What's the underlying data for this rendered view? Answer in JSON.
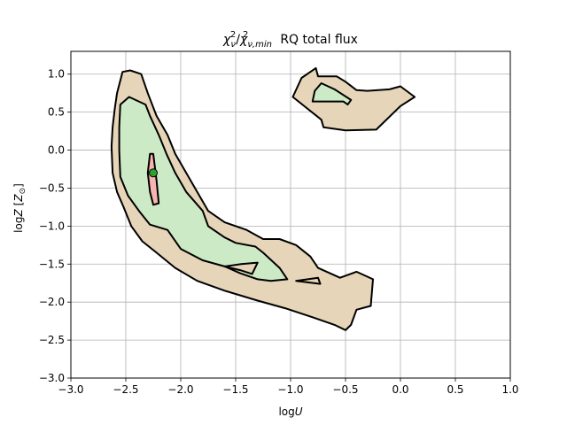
{
  "chart_data": {
    "type": "contour",
    "title": "χ²ν/χ²ν,min  RQ total flux",
    "title_parts": {
      "chi": "χ",
      "sup": "2",
      "nu": "ν",
      "sub_min": "ν,min",
      "suffix": "RQ total flux"
    },
    "xlabel": "logU",
    "xlabel_parts": {
      "prefix": "log",
      "var": "U"
    },
    "ylabel": "logZ [Z⊙]",
    "ylabel_parts": {
      "prefix": "log",
      "var": "Z",
      "unit_open": "[",
      "unit_var": "Z",
      "unit_sub": "⊙",
      "unit_close": "]"
    },
    "xlim": [
      -3.0,
      1.0
    ],
    "ylim": [
      -3.0,
      1.3
    ],
    "xticks": [
      -3.0,
      -2.5,
      -2.0,
      -1.5,
      -1.0,
      -0.5,
      0.0,
      0.5,
      1.0
    ],
    "xtick_labels": [
      "−3.0",
      "−2.5",
      "−2.0",
      "−1.5",
      "−1.0",
      "−0.5",
      "0.0",
      "0.5",
      "1.0"
    ],
    "yticks": [
      -3.0,
      -2.5,
      -2.0,
      -1.5,
      -1.0,
      -0.5,
      0.0,
      0.5,
      1.0
    ],
    "ytick_labels": [
      "−3.0",
      "−2.5",
      "−2.0",
      "−1.5",
      "−1.0",
      "−0.5",
      "0.0",
      "0.5",
      "1.0"
    ],
    "grid": true,
    "colors": {
      "outer": "#e6d5b8",
      "middle": "#cdeac6",
      "inner": "#f8b4b0",
      "edge": "#000000",
      "marker": "#2ca02c",
      "grid": "#b0b0b0"
    },
    "regions": [
      {
        "level": "outer",
        "points": [
          [
            -2.46,
            1.05
          ],
          [
            -2.53,
            1.03
          ],
          [
            -2.58,
            0.75
          ],
          [
            -2.6,
            0.55
          ],
          [
            -2.62,
            0.3
          ],
          [
            -2.63,
            0.05
          ],
          [
            -2.62,
            -0.3
          ],
          [
            -2.58,
            -0.55
          ],
          [
            -2.52,
            -0.75
          ],
          [
            -2.45,
            -1.0
          ],
          [
            -2.35,
            -1.2
          ],
          [
            -2.22,
            -1.35
          ],
          [
            -2.05,
            -1.55
          ],
          [
            -1.85,
            -1.72
          ],
          [
            -1.6,
            -1.85
          ],
          [
            -1.3,
            -1.98
          ],
          [
            -1.05,
            -2.08
          ],
          [
            -0.8,
            -2.2
          ],
          [
            -0.6,
            -2.3
          ],
          [
            -0.5,
            -2.37
          ],
          [
            -0.45,
            -2.3
          ],
          [
            -0.4,
            -2.1
          ],
          [
            -0.27,
            -2.05
          ],
          [
            -0.25,
            -1.7
          ],
          [
            -0.4,
            -1.6
          ],
          [
            -0.55,
            -1.68
          ],
          [
            -0.75,
            -1.55
          ],
          [
            -0.82,
            -1.4
          ],
          [
            -0.95,
            -1.25
          ],
          [
            -1.1,
            -1.17
          ],
          [
            -1.25,
            -1.17
          ],
          [
            -1.4,
            -1.05
          ],
          [
            -1.6,
            -0.95
          ],
          [
            -1.75,
            -0.8
          ],
          [
            -1.85,
            -0.55
          ],
          [
            -1.95,
            -0.3
          ],
          [
            -2.05,
            -0.05
          ],
          [
            -2.12,
            0.2
          ],
          [
            -2.22,
            0.45
          ],
          [
            -2.3,
            0.75
          ],
          [
            -2.36,
            1.0
          ],
          [
            -2.46,
            1.05
          ]
        ]
      },
      {
        "level": "outer",
        "points": [
          [
            -0.98,
            0.7
          ],
          [
            -0.9,
            0.95
          ],
          [
            -0.77,
            1.08
          ],
          [
            -0.75,
            0.97
          ],
          [
            -0.58,
            0.97
          ],
          [
            -0.5,
            0.9
          ],
          [
            -0.4,
            0.79
          ],
          [
            -0.3,
            0.78
          ],
          [
            -0.1,
            0.8
          ],
          [
            0.0,
            0.84
          ],
          [
            0.13,
            0.7
          ],
          [
            0.0,
            0.58
          ],
          [
            -0.22,
            0.27
          ],
          [
            -0.5,
            0.26
          ],
          [
            -0.7,
            0.3
          ],
          [
            -0.72,
            0.4
          ],
          [
            -0.98,
            0.7
          ]
        ]
      },
      {
        "level": "middle",
        "points": [
          [
            -2.47,
            0.7
          ],
          [
            -2.55,
            0.6
          ],
          [
            -2.56,
            0.3
          ],
          [
            -2.56,
            0.0
          ],
          [
            -2.55,
            -0.35
          ],
          [
            -2.48,
            -0.6
          ],
          [
            -2.38,
            -0.8
          ],
          [
            -2.28,
            -0.98
          ],
          [
            -2.12,
            -1.05
          ],
          [
            -2.0,
            -1.3
          ],
          [
            -1.8,
            -1.45
          ],
          [
            -1.6,
            -1.53
          ],
          [
            -1.46,
            -1.62
          ],
          [
            -1.3,
            -1.7
          ],
          [
            -1.18,
            -1.72
          ],
          [
            -1.03,
            -1.7
          ],
          [
            -1.1,
            -1.55
          ],
          [
            -1.25,
            -1.35
          ],
          [
            -1.32,
            -1.27
          ],
          [
            -1.5,
            -1.22
          ],
          [
            -1.6,
            -1.15
          ],
          [
            -1.75,
            -1.0
          ],
          [
            -1.8,
            -0.8
          ],
          [
            -1.95,
            -0.55
          ],
          [
            -2.05,
            -0.3
          ],
          [
            -2.13,
            -0.05
          ],
          [
            -2.2,
            0.2
          ],
          [
            -2.28,
            0.45
          ],
          [
            -2.32,
            0.6
          ],
          [
            -2.47,
            0.7
          ]
        ]
      },
      {
        "level": "middle",
        "points": [
          [
            -0.78,
            0.78
          ],
          [
            -0.72,
            0.88
          ],
          [
            -0.6,
            0.8
          ],
          [
            -0.45,
            0.66
          ],
          [
            -0.48,
            0.6
          ],
          [
            -0.52,
            0.64
          ],
          [
            -0.8,
            0.64
          ],
          [
            -0.78,
            0.78
          ]
        ]
      },
      {
        "level": "outer",
        "points": [
          [
            -0.95,
            -1.72
          ],
          [
            -0.75,
            -1.68
          ],
          [
            -0.73,
            -1.76
          ],
          [
            -0.95,
            -1.72
          ]
        ]
      },
      {
        "level": "outer",
        "points": [
          [
            -1.3,
            -1.48
          ],
          [
            -1.45,
            -1.5
          ],
          [
            -1.6,
            -1.53
          ],
          [
            -1.46,
            -1.58
          ],
          [
            -1.35,
            -1.63
          ],
          [
            -1.3,
            -1.48
          ]
        ]
      },
      {
        "level": "inner",
        "points": [
          [
            -2.28,
            -0.05
          ],
          [
            -2.3,
            -0.3
          ],
          [
            -2.28,
            -0.55
          ],
          [
            -2.25,
            -0.72
          ],
          [
            -2.2,
            -0.7
          ],
          [
            -2.22,
            -0.4
          ],
          [
            -2.25,
            -0.05
          ],
          [
            -2.28,
            -0.05
          ]
        ]
      }
    ],
    "marker": {
      "x": -2.25,
      "y": -0.3
    }
  }
}
